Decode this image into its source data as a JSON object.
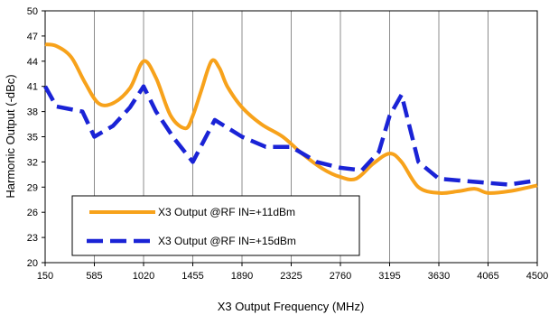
{
  "chart_data": {
    "type": "line",
    "title": "",
    "xlabel": "X3 Output Frequency (MHz)",
    "ylabel": "Harmonic Output (-dBc)",
    "xlim": [
      150,
      4500
    ],
    "ylim": [
      20,
      50
    ],
    "x_ticks": [
      "150",
      "585",
      "1020",
      "1455",
      "1890",
      "2325",
      "2760",
      "3195",
      "3630",
      "4065",
      "4500"
    ],
    "y_ticks": [
      "20",
      "23",
      "26",
      "29",
      "32",
      "35",
      "38",
      "41",
      "44",
      "47",
      "50"
    ],
    "grid": {
      "vertical": true,
      "horizontal": false
    },
    "legend_position": "bottom-left, inside plot",
    "series": [
      {
        "name": "X3 Output @RF IN=+11dBm",
        "color": "#f7a21b",
        "dash": "solid",
        "x": [
          150,
          250,
          380,
          500,
          620,
          750,
          900,
          1020,
          1130,
          1260,
          1390,
          1455,
          1530,
          1620,
          1690,
          1760,
          1890,
          2060,
          2250,
          2420,
          2600,
          2760,
          2900,
          3050,
          3195,
          3300,
          3450,
          3630,
          3800,
          3950,
          4065,
          4250,
          4500
        ],
        "y": [
          46.0,
          45.8,
          44.5,
          41.5,
          39.0,
          39.0,
          40.8,
          44.0,
          42.0,
          37.5,
          36.0,
          37.5,
          40.5,
          44.0,
          43.2,
          41.0,
          38.5,
          36.5,
          35.0,
          33.0,
          31.2,
          30.2,
          30.0,
          31.8,
          33.0,
          32.0,
          29.0,
          28.3,
          28.5,
          28.8,
          28.3,
          28.5,
          29.2
        ]
      },
      {
        "name": "X3 Output @RF IN=+15dBm",
        "color": "#1a23d6",
        "dash": "dashed",
        "x": [
          150,
          250,
          480,
          585,
          750,
          900,
          1020,
          1130,
          1290,
          1455,
          1650,
          1890,
          2100,
          2325,
          2550,
          2760,
          2950,
          3100,
          3195,
          3300,
          3450,
          3630,
          4065,
          4250,
          4500
        ],
        "y": [
          41.0,
          38.6,
          38.0,
          35.0,
          36.3,
          38.5,
          41.0,
          38.0,
          34.8,
          32.0,
          37.0,
          35.0,
          33.8,
          33.8,
          32.0,
          31.3,
          31.0,
          33.2,
          37.5,
          40.0,
          32.0,
          30.0,
          29.5,
          29.3,
          29.8
        ]
      }
    ]
  }
}
